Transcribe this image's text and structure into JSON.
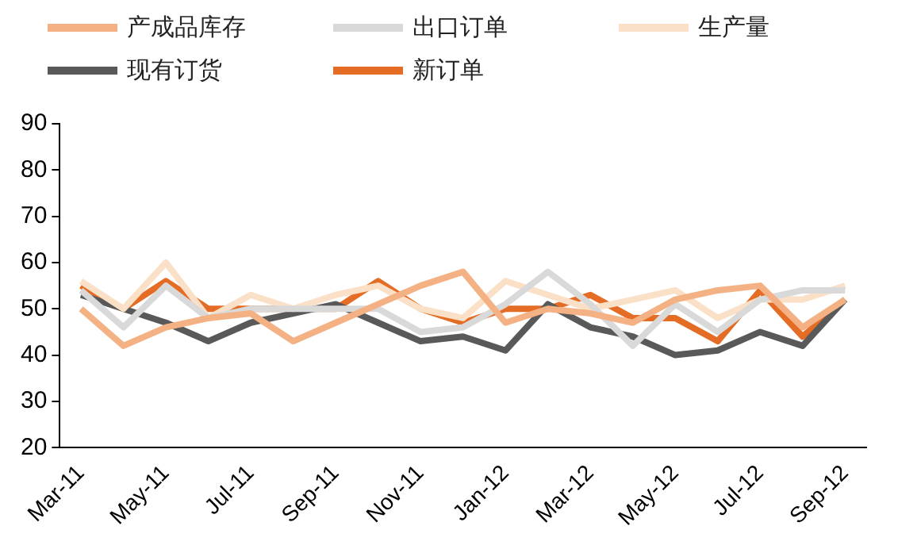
{
  "chart_data": {
    "type": "line",
    "categories": [
      "Mar-11",
      null,
      "May-11",
      null,
      "Jul-11",
      null,
      "Sep-11",
      null,
      "Nov-11",
      null,
      "Jan-12",
      null,
      "Mar-12",
      null,
      "May-12",
      null,
      "Jul-12",
      null,
      "Sep-12"
    ],
    "series": [
      {
        "name": "产成品库存",
        "color": "#f4b183",
        "values": [
          50,
          42,
          46,
          48,
          49,
          43,
          47,
          51,
          55,
          58,
          47,
          50,
          49,
          47,
          52,
          54,
          55,
          46,
          52
        ]
      },
      {
        "name": "出口订单",
        "color": "#d9d9d9",
        "values": [
          54,
          46,
          55,
          48,
          50,
          50,
          50,
          50,
          45,
          46,
          51,
          58,
          51,
          42,
          51,
          45,
          52,
          54,
          54
        ]
      },
      {
        "name": "生产量",
        "color": "#fbe0c8",
        "values": [
          56,
          50,
          60,
          48,
          53,
          50,
          53,
          55,
          50,
          48,
          56,
          53,
          50,
          52,
          54,
          48,
          52,
          52,
          55
        ]
      },
      {
        "name": "现有订货",
        "color": "#595959",
        "values": [
          53,
          50,
          47,
          43,
          47,
          49,
          51,
          47,
          43,
          44,
          41,
          51,
          46,
          44,
          40,
          41,
          45,
          42,
          52
        ]
      },
      {
        "name": "新订单",
        "color": "#e46c24",
        "values": [
          55,
          50,
          56,
          50,
          50,
          50,
          50,
          56,
          50,
          47,
          50,
          50,
          53,
          48,
          48,
          43,
          54,
          44,
          52
        ]
      }
    ],
    "ylim": [
      20,
      90
    ],
    "yticks": [
      20,
      30,
      40,
      50,
      60,
      70,
      80,
      90
    ],
    "grid": false,
    "legend": "top",
    "marker": "none",
    "line_style": "solid"
  }
}
